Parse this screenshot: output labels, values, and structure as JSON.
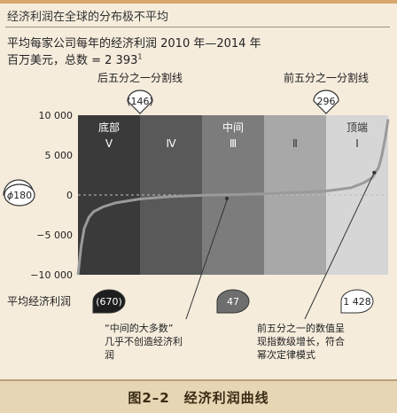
{
  "header": {
    "title": "经济利润在全球的分布极不平均"
  },
  "subtitle": {
    "line1": "平均每家公司每年的经济利润 2010 年—2014 年",
    "line2": "百万美元，总数 = 2 393",
    "line2_sup": "1"
  },
  "chart_data": {
    "type": "line",
    "ylim": [
      -10000,
      10000
    ],
    "yticks": [
      "10 000",
      "5 000",
      "0",
      "−5 000",
      "−10 000"
    ],
    "ytick_values": [
      10000,
      5000,
      0,
      -5000,
      -10000
    ],
    "quintiles": [
      {
        "label": "底部",
        "roman": "Ⅴ",
        "color": "#3a3a3a"
      },
      {
        "label": "",
        "roman": "Ⅳ",
        "color": "#595959"
      },
      {
        "label": "中间",
        "roman": "Ⅲ",
        "color": "#7c7c7c"
      },
      {
        "label": "",
        "roman": "Ⅱ",
        "color": "#a8a8a8"
      },
      {
        "label": "顶端",
        "roman": "Ⅰ",
        "color": "#d6d6d6"
      }
    ],
    "curve_x": [
      0,
      0.01,
      0.02,
      0.035,
      0.05,
      0.08,
      0.12,
      0.2,
      0.3,
      0.4,
      0.5,
      0.6,
      0.7,
      0.8,
      0.88,
      0.92,
      0.95,
      0.97,
      0.98,
      0.99,
      1.0
    ],
    "curve_y": [
      -10000,
      -6500,
      -4200,
      -2800,
      -2100,
      -1500,
      -1000,
      -500,
      -200,
      -50,
      50,
      150,
      300,
      500,
      900,
      1500,
      2200,
      3500,
      5000,
      7000,
      9500
    ],
    "average_value": "180",
    "average_prefix": "ϕ",
    "bottom_cut": {
      "label": "后五分之一分割线",
      "value": "(146)"
    },
    "top_cut": {
      "label": "前五分之一分割线",
      "value": "296"
    },
    "row_label": "平均经济利润",
    "quintile_averages": [
      {
        "value": "(670)",
        "fill": "#1e1e1e",
        "text_color": "#ffffff"
      },
      {
        "value": "47",
        "fill": "#6e6e6e",
        "text_color": "#ffffff"
      },
      {
        "value": "1 428",
        "fill": "#ffffff",
        "text_color": "#222222"
      }
    ],
    "annotations": [
      {
        "lines": [
          "“中间的大多数”",
          "几乎不创造经济利",
          "润"
        ]
      },
      {
        "lines": [
          "前五分之一的数值呈",
          "现指数级增长，符合",
          "幂次定律模式"
        ]
      }
    ],
    "colors": {
      "curve": "#9a9a9a",
      "zero_line": "#bdbdbd"
    }
  },
  "footer": {
    "label": "图2–2　经济利润曲线"
  }
}
